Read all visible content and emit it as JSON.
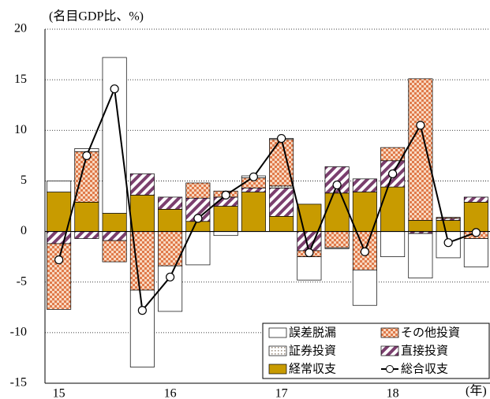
{
  "chart_data": {
    "type": "bar",
    "stacked": true,
    "y_label": "(名目GDP比、%)",
    "x_label": "(年)",
    "categories": [
      "15",
      null,
      null,
      null,
      "16",
      null,
      null,
      null,
      "17",
      null,
      null,
      null,
      "18",
      null,
      null,
      null
    ],
    "ylim": [
      -15,
      20
    ],
    "yticks": [
      -15,
      -10,
      -5,
      0,
      5,
      10,
      15,
      20
    ],
    "grid": true,
    "legend": "bottom-right",
    "series": [
      {
        "name": "経常収支",
        "color": "#c89b00",
        "pattern": "solid",
        "values": [
          3.9,
          2.9,
          1.8,
          3.6,
          2.2,
          1.0,
          2.5,
          3.9,
          1.5,
          2.7,
          3.8,
          3.9,
          4.4,
          1.1,
          1.1,
          2.9
        ]
      },
      {
        "name": "直接投資",
        "color": "#7b3f6e",
        "pattern": "hatch",
        "values": [
          -1.2,
          -0.7,
          -0.9,
          2.1,
          1.2,
          2.3,
          0.9,
          0.4,
          2.8,
          -1.9,
          2.6,
          1.3,
          2.6,
          -0.2,
          0.2,
          0.5
        ]
      },
      {
        "name": "証券投資",
        "color": "#9a8a7a",
        "pattern": "dots",
        "values": [
          0,
          0,
          0,
          0,
          0,
          0,
          0,
          0,
          0.2,
          0,
          0,
          0,
          0,
          0,
          0,
          0
        ]
      },
      {
        "name": "その他投資",
        "color": "#e07a4a",
        "pattern": "check",
        "values": [
          -6.5,
          5.0,
          -2.1,
          -5.8,
          -3.4,
          1.5,
          0.6,
          1.0,
          4.6,
          -0.6,
          -1.6,
          -3.8,
          1.3,
          14.0,
          0.1,
          -0.7
        ]
      },
      {
        "name": "誤差脱漏",
        "color": "#ffffff",
        "pattern": "solid",
        "values": [
          1.1,
          0.3,
          15.4,
          -7.6,
          -4.5,
          -3.3,
          -0.4,
          0.2,
          0.1,
          -2.3,
          -0.1,
          -3.5,
          -2.5,
          -4.4,
          -2.6,
          -2.8
        ]
      }
    ],
    "line": {
      "name": "総合収支",
      "color": "#000000",
      "values": [
        -2.8,
        7.5,
        14.1,
        -7.8,
        -4.5,
        1.3,
        3.6,
        5.4,
        9.2,
        -2.1,
        4.6,
        -2.0,
        5.7,
        10.5,
        -1.1,
        -0.1
      ]
    }
  }
}
